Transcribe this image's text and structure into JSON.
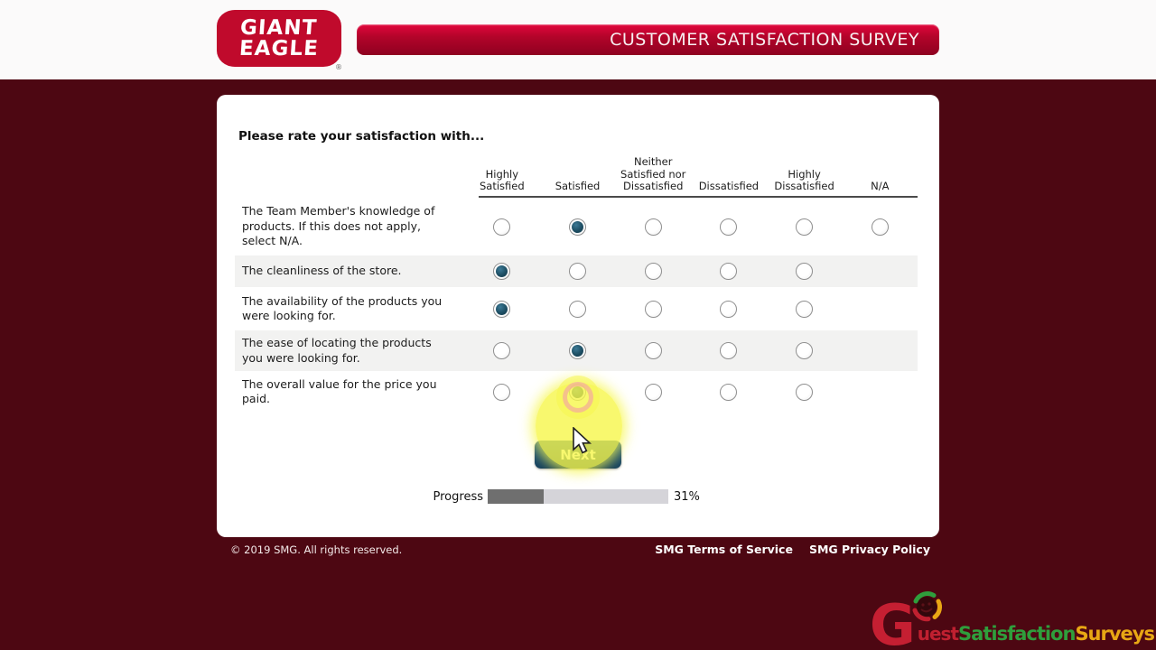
{
  "header": {
    "logo_line1": "GIANT",
    "logo_line2": "EAGLE",
    "registered_mark": "®",
    "banner_title": "CUSTOMER SATISFACTION SURVEY"
  },
  "survey": {
    "prompt": "Please rate your satisfaction with...",
    "columns": [
      "Highly\nSatisfied",
      "Satisfied",
      "Neither\nSatisfied nor\nDissatisfied",
      "Dissatisfied",
      "Highly\nDissatisfied",
      "N/A"
    ],
    "rows": [
      {
        "question": "The Team Member's knowledge of products. If this does not apply, select N/A.",
        "selected": 1,
        "has_na": true,
        "highlighted": false
      },
      {
        "question": "The cleanliness of the store.",
        "selected": 0,
        "has_na": false,
        "highlighted": false
      },
      {
        "question": "The availability of the products you were looking for.",
        "selected": 0,
        "has_na": false,
        "highlighted": false
      },
      {
        "question": "The ease of locating the products you were looking for.",
        "selected": 1,
        "has_na": false,
        "highlighted": false
      },
      {
        "question": "The overall value for the price you paid.",
        "selected": 1,
        "has_na": false,
        "highlighted": true
      }
    ],
    "next_label": "Next",
    "progress": {
      "label": "Progress",
      "percent": 31,
      "percent_label": "31%"
    }
  },
  "footer": {
    "copyright": "© 2019 SMG. All rights reserved.",
    "links": [
      "SMG Terms of Service",
      "SMG Privacy Policy"
    ]
  },
  "watermark": {
    "g": "G",
    "uest": "uest",
    "satisfaction": "Satisfaction",
    "surveys": "Surveys"
  },
  "colors": {
    "brand_red": "#c00a2c",
    "page_maroon": "#4d0712",
    "banner_top": "#e2063c",
    "banner_bottom": "#8e0120",
    "radio_selected": "#1d4e63",
    "next_button": "#1a4e74",
    "row_alt": "#f2f2f1",
    "progress_fill": "#6f6f6f",
    "progress_track": "#d5d4d9",
    "highlight_yellow": "#f6f64a"
  }
}
